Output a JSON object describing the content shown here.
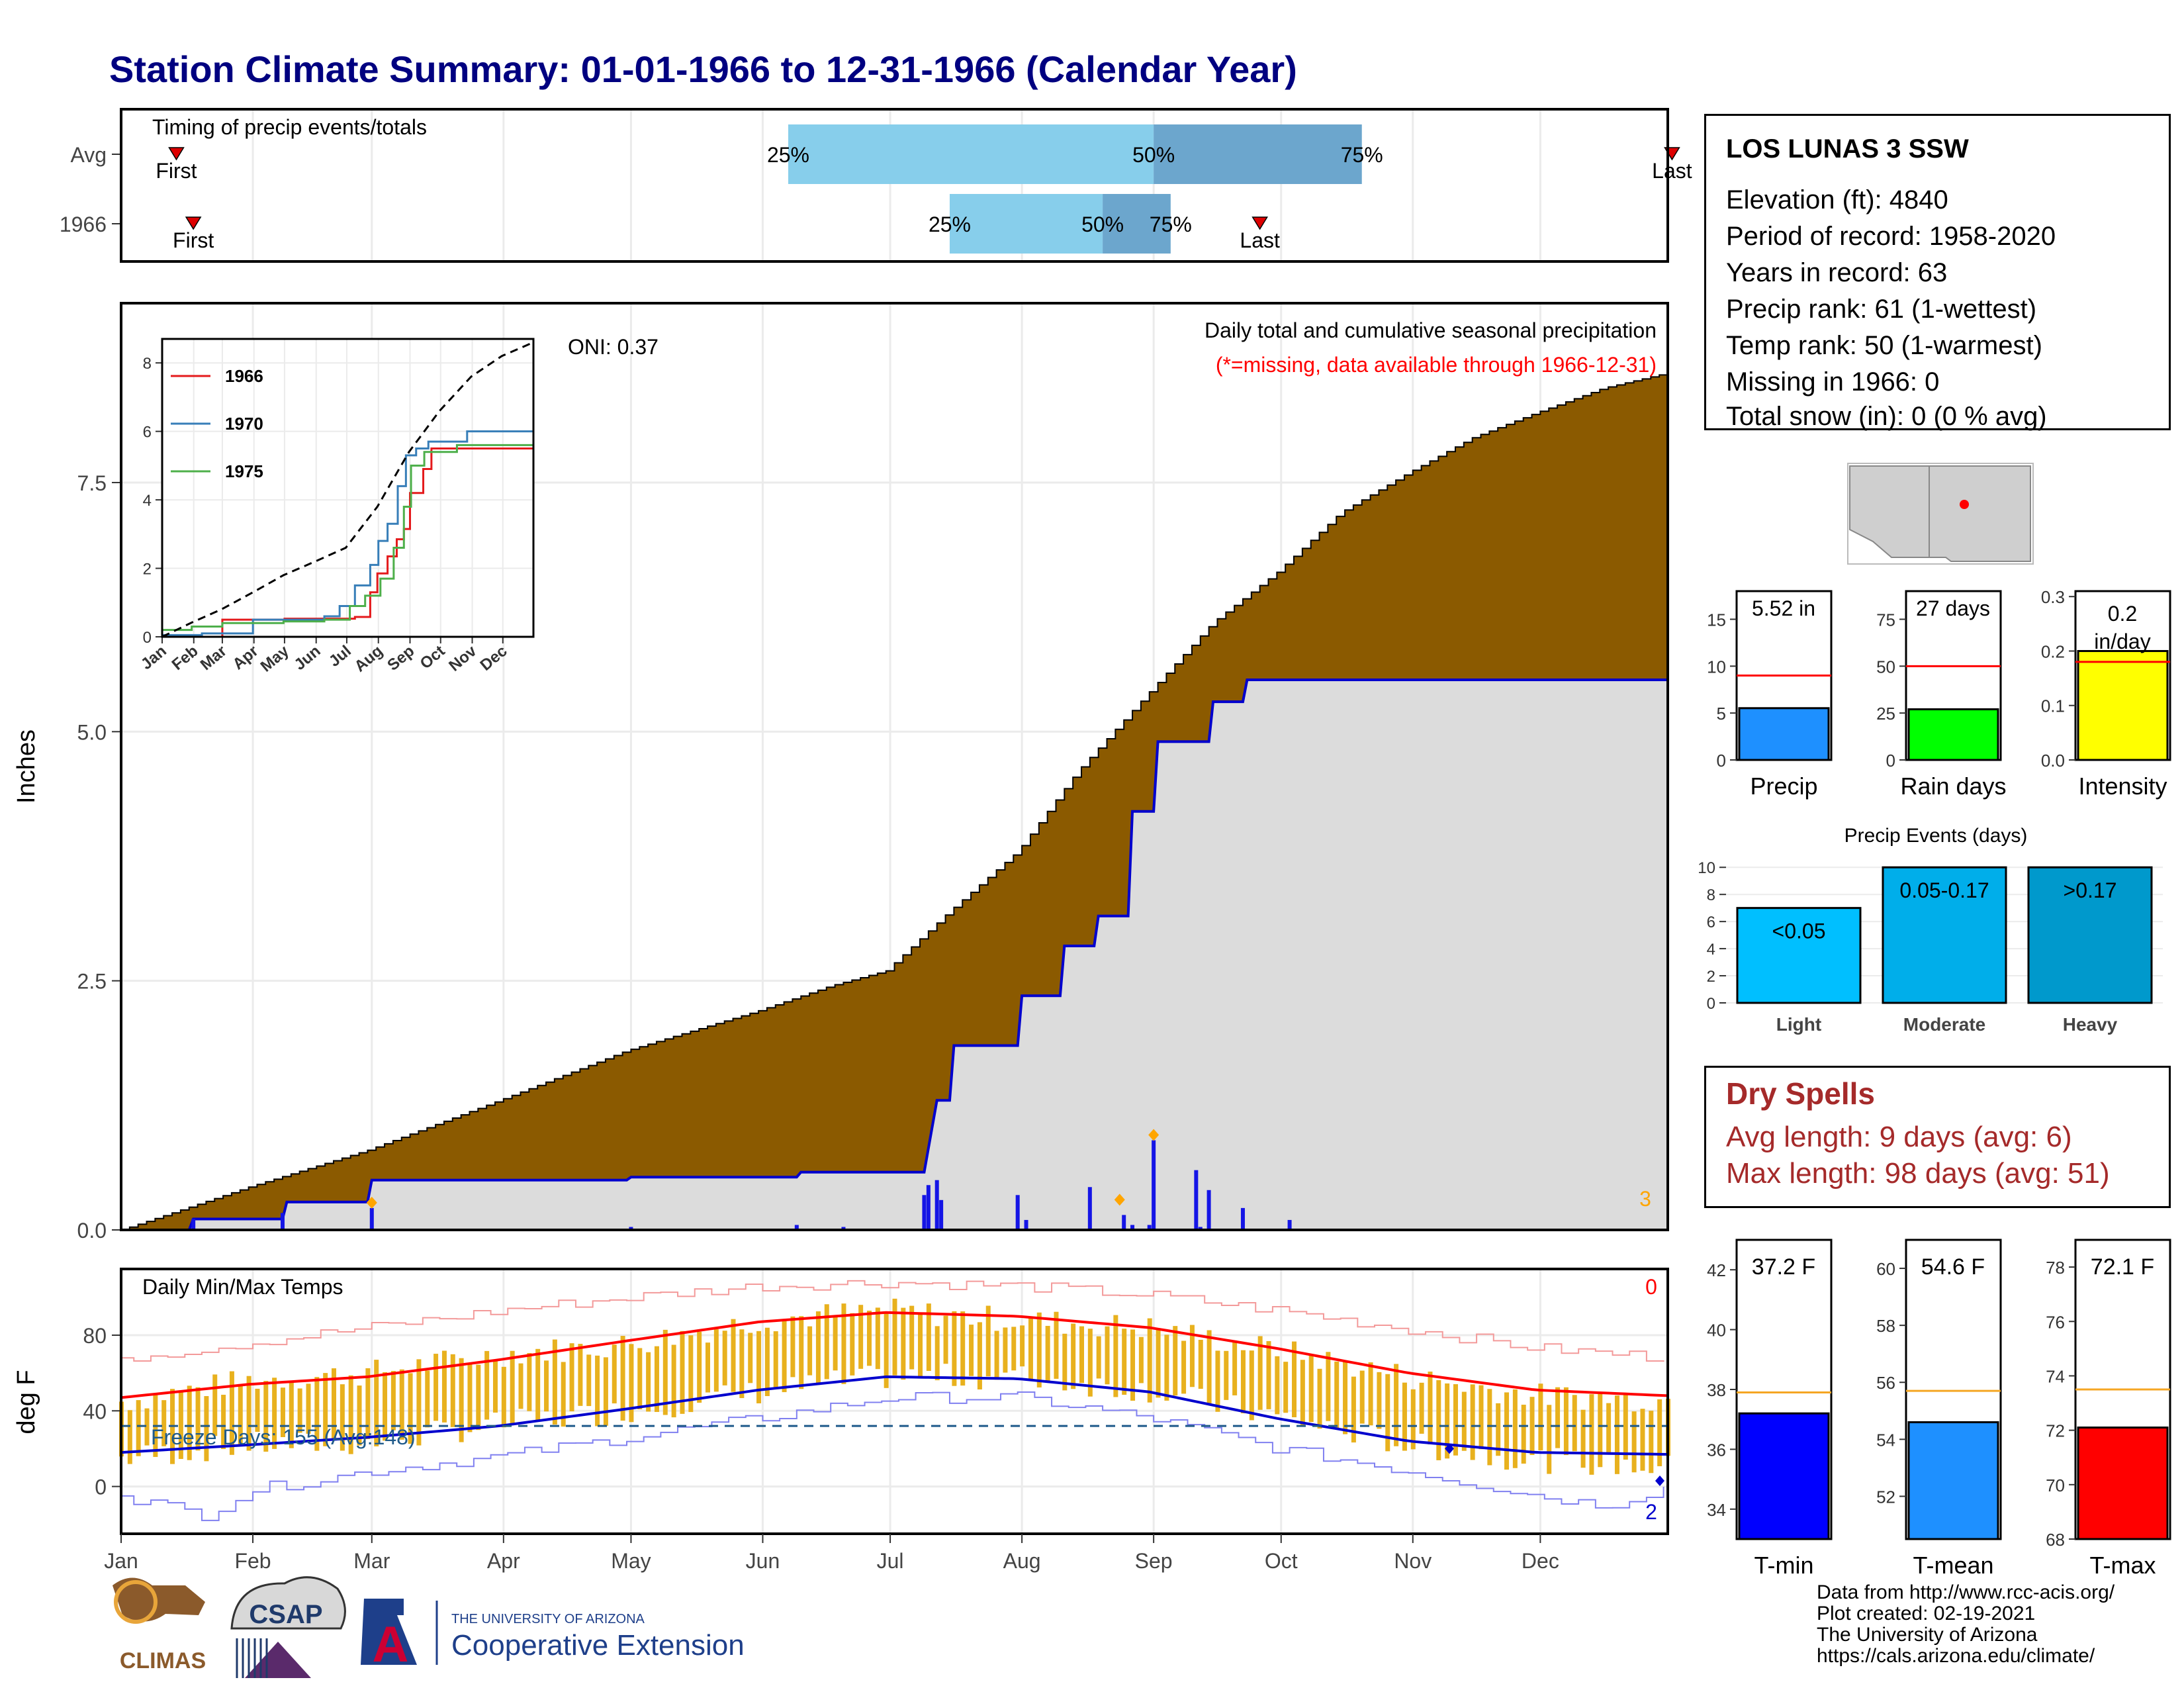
{
  "title": "Station Climate Summary: 01-01-1966 to 12-31-1966 (Calendar Year)",
  "station": {
    "name": "LOS LUNAS 3 SSW",
    "lines": [
      "Elevation (ft): 4840",
      "Period of record: 1958-2020",
      "Years in record: 63",
      "Precip rank: 61 (1-wettest)",
      "Temp rank: 50 (1-warmest)",
      "Missing in 1966: 0",
      "Total snow (in): 0 (0 % avg)"
    ]
  },
  "dry_spells": {
    "title": "Dry Spells",
    "avg": "Avg length: 9 days (avg: 6)",
    "max": "Max length: 98 days (avg: 51)"
  },
  "footer": {
    "lines": [
      "Data from http://www.rcc-acis.org/",
      "Plot created: 02-19-2021",
      "The University of Arizona",
      "https://cals.arizona.edu/climate/"
    ],
    "logos": [
      "CLIMAS",
      "CSAP",
      "A",
      "THE UNIVERSITY OF ARIZONA",
      "Cooperative Extension"
    ]
  },
  "months": [
    "Jan",
    "Feb",
    "Mar",
    "Apr",
    "May",
    "Jun",
    "Jul",
    "Aug",
    "Sep",
    "Oct",
    "Nov",
    "Dec"
  ],
  "colors": {
    "avg_fill": "#8B5A00",
    "year_fill": "#DCDCDC",
    "year_line": "#0000CD",
    "bar": "#1515E6",
    "marker": "#FFA500",
    "temp_bar": "#E8B11E",
    "tmax_avg": "#FF0000",
    "tmin_avg": "#0000CD",
    "record_max": "#F39A9A",
    "record_min": "#8080F0",
    "panel_border": "#000000",
    "grid": "#EBEBEB"
  },
  "chart_data": [
    {
      "id": "timing",
      "type": "bar",
      "title": "Timing of precip events/totals",
      "rows": [
        {
          "label": "Avg",
          "first_doy": 14,
          "last_doy": 366,
          "p25_doy": 158,
          "p50_doy": 244,
          "p75_doy": 293,
          "p25_label": "25%",
          "p50_label": "50%",
          "p75_label": "75%",
          "first_label": "First",
          "last_label": "Last"
        },
        {
          "label": "1966",
          "first_doy": 18,
          "last_doy": 269,
          "p25_doy": 196,
          "p50_doy": 232,
          "p75_doy": 248,
          "p25_label": "25%",
          "p50_label": "50%",
          "p75_label": "75%",
          "first_label": "First",
          "last_label": "Last"
        }
      ]
    },
    {
      "id": "precip",
      "type": "area",
      "title": "Daily total and cumulative seasonal precipitation",
      "subtitle": "(*=missing, data available through 1966-12-31)",
      "annotation": "ONI: 0.37",
      "ylabel": "Inches",
      "ylim": [
        0,
        9.3
      ],
      "yticks": [
        0.0,
        2.5,
        5.0,
        7.5
      ],
      "corner_count": "3",
      "avg_cumulative": {
        "x": [
          1,
          15,
          31,
          59,
          90,
          120,
          151,
          168,
          181,
          196,
          212,
          226,
          243,
          258,
          273,
          288,
          304,
          319,
          334,
          350,
          365
        ],
        "y": [
          0.0,
          0.2,
          0.43,
          0.8,
          1.3,
          1.8,
          2.2,
          2.45,
          2.6,
          3.2,
          3.8,
          4.6,
          5.4,
          6.1,
          6.6,
          7.2,
          7.6,
          7.95,
          8.2,
          8.45,
          8.6
        ]
      },
      "year_cumulative": {
        "x": [
          1,
          17,
          18,
          39,
          40,
          59,
          60,
          120,
          121,
          160,
          161,
          190,
          191,
          193,
          196,
          197,
          212,
          213,
          222,
          223,
          230,
          231,
          238,
          239,
          244,
          245,
          257,
          258,
          265,
          266,
          365
        ],
        "y": [
          0.0,
          0.0,
          0.11,
          0.11,
          0.28,
          0.28,
          0.5,
          0.5,
          0.53,
          0.53,
          0.58,
          0.58,
          0.82,
          1.3,
          1.3,
          1.85,
          1.85,
          2.35,
          2.35,
          2.85,
          2.85,
          3.15,
          3.15,
          4.2,
          4.2,
          4.9,
          4.9,
          5.3,
          5.3,
          5.52,
          5.52
        ]
      },
      "daily_bars": {
        "x": [
          18,
          39,
          60,
          121,
          160,
          171,
          190,
          191,
          193,
          194,
          212,
          214,
          229,
          237,
          239,
          243,
          244,
          254,
          255,
          257,
          265,
          276
        ],
        "y": [
          0.11,
          0.17,
          0.22,
          0.03,
          0.05,
          0.03,
          0.35,
          0.45,
          0.5,
          0.3,
          0.35,
          0.1,
          0.43,
          0.15,
          0.05,
          0.05,
          0.9,
          0.6,
          0.03,
          0.4,
          0.22,
          0.1
        ]
      },
      "flagged_days": {
        "x": [
          60,
          236,
          244
        ],
        "y": [
          0.22,
          0.25,
          0.9
        ]
      },
      "inset": {
        "type": "line",
        "yticks": [
          0,
          2,
          4,
          6,
          8
        ],
        "ylim": [
          0,
          8.7
        ],
        "series": [
          {
            "name": "1966",
            "color": "#E41A1C",
            "x": [
              1,
              60,
              121,
              190,
              205,
              212,
              222,
              231,
              238,
              244,
              257,
              265,
              365
            ],
            "y": [
              0.0,
              0.5,
              0.53,
              0.58,
              1.3,
              1.85,
              2.35,
              2.85,
              3.15,
              4.2,
              4.9,
              5.5,
              5.52
            ]
          },
          {
            "name": "1970",
            "color": "#377EB8",
            "x": [
              1,
              40,
              90,
              160,
              175,
              190,
              205,
              213,
              222,
              232,
              240,
              250,
              262,
              300,
              365
            ],
            "y": [
              0.05,
              0.1,
              0.5,
              0.6,
              0.9,
              1.5,
              2.1,
              2.8,
              3.3,
              4.4,
              5.3,
              5.5,
              5.7,
              6.0,
              6.0
            ]
          },
          {
            "name": "1975",
            "color": "#4DAF4A",
            "x": [
              1,
              30,
              60,
              120,
              160,
              185,
              200,
              215,
              228,
              238,
              245,
              258,
              290,
              365
            ],
            "y": [
              0.2,
              0.3,
              0.4,
              0.45,
              0.5,
              0.9,
              1.2,
              1.7,
              2.6,
              3.8,
              5.0,
              5.4,
              5.6,
              5.6
            ]
          },
          {
            "name": "avg",
            "color": "#000000",
            "dashed": true,
            "x": [
              1,
              31,
              59,
              90,
              120,
              151,
              181,
              212,
              243,
              273,
              304,
              334,
              365
            ],
            "y": [
              0.0,
              0.43,
              0.8,
              1.3,
              1.8,
              2.2,
              2.6,
              3.8,
              5.4,
              6.6,
              7.6,
              8.2,
              8.6
            ]
          }
        ]
      }
    },
    {
      "id": "temps",
      "type": "bar",
      "title": "Daily Min/Max Temps",
      "ylabel": "deg F",
      "ylim": [
        -25,
        115
      ],
      "yticks": [
        0,
        40,
        80
      ],
      "freeze_line": 32,
      "freeze_label": "Freeze Days: 155 (Avg:148)",
      "hot_count": "0",
      "cold_count": "2",
      "avg_max": {
        "x": [
          1,
          31,
          59,
          90,
          120,
          151,
          181,
          212,
          243,
          273,
          304,
          334,
          365
        ],
        "y": [
          47,
          54,
          58,
          67,
          77,
          87,
          92,
          90,
          84,
          73,
          60,
          51,
          48
        ]
      },
      "avg_min": {
        "x": [
          1,
          31,
          59,
          90,
          120,
          151,
          181,
          212,
          243,
          273,
          304,
          334,
          365
        ],
        "y": [
          18,
          22,
          26,
          32,
          41,
          51,
          58,
          57,
          50,
          36,
          24,
          18,
          17
        ]
      },
      "record_max": {
        "x": [
          1,
          31,
          59,
          90,
          120,
          151,
          181,
          212,
          243,
          273,
          304,
          334,
          365
        ],
        "y": [
          68,
          76,
          84,
          93,
          100,
          106,
          108,
          106,
          101,
          93,
          83,
          73,
          68
        ]
      },
      "record_min": {
        "x": [
          1,
          20,
          31,
          59,
          90,
          120,
          151,
          181,
          212,
          243,
          273,
          304,
          334,
          350,
          365
        ],
        "y": [
          -5,
          -15,
          -2,
          8,
          16,
          26,
          36,
          47,
          47,
          36,
          20,
          8,
          -5,
          -10,
          0
        ]
      },
      "daily_max_anchor": {
        "x": [
          1,
          31,
          59,
          90,
          120,
          151,
          181,
          212,
          243,
          273,
          304,
          334,
          365
        ],
        "y": [
          45,
          56,
          60,
          70,
          75,
          88,
          93,
          88,
          84,
          72,
          58,
          48,
          46
        ]
      },
      "daily_min_anchor": {
        "x": [
          1,
          31,
          59,
          90,
          120,
          151,
          181,
          212,
          243,
          273,
          304,
          334,
          365
        ],
        "y": [
          15,
          22,
          23,
          33,
          40,
          50,
          58,
          58,
          51,
          37,
          22,
          14,
          10
        ]
      }
    },
    {
      "id": "summary_precip",
      "type": "bar",
      "panels": [
        {
          "label": "Precip",
          "value": 5.52,
          "value_label": "5.52 in",
          "avg": 9.0,
          "ylim": [
            0,
            18
          ],
          "yticks": [
            0,
            5,
            10,
            15
          ],
          "color": "#1E90FF"
        },
        {
          "label": "Rain days",
          "value": 27,
          "value_label": "27 days",
          "avg": 50,
          "ylim": [
            0,
            90
          ],
          "yticks": [
            0,
            25,
            50,
            75
          ],
          "color": "#00FF00"
        },
        {
          "label": "Intensity",
          "value": 0.2,
          "value_label": "0.2 in/day",
          "avg": 0.18,
          "ylim": [
            0,
            0.31
          ],
          "yticks": [
            0.0,
            0.1,
            0.2,
            0.3
          ],
          "ytick_labels": [
            "0.0",
            "0.1",
            "0.2",
            "0.3"
          ],
          "color": "#FFFF00"
        }
      ]
    },
    {
      "id": "precip_events",
      "type": "bar",
      "title": "Precip Events (days)",
      "categories": [
        "Light",
        "Moderate",
        "Heavy"
      ],
      "values": [
        7,
        10,
        10
      ],
      "value_labels": [
        "<0.05",
        "0.05-0.17",
        ">0.17"
      ],
      "colors": [
        "#00BFFF",
        "#00AEEA",
        "#0099CC"
      ],
      "ylim": [
        0,
        10.5
      ],
      "yticks": [
        0,
        2,
        4,
        6,
        8,
        10
      ]
    },
    {
      "id": "summary_temps",
      "type": "bar",
      "panels": [
        {
          "label": "T-min",
          "value": 37.2,
          "value_label": "37.2 F",
          "avg": 37.9,
          "ylim": [
            33,
            43
          ],
          "yticks": [
            34,
            36,
            38,
            40,
            42
          ],
          "color": "#0000FF"
        },
        {
          "label": "T-mean",
          "value": 54.6,
          "value_label": "54.6 F",
          "avg": 55.7,
          "ylim": [
            50.5,
            61
          ],
          "yticks": [
            52,
            54,
            56,
            58,
            60
          ],
          "color": "#1E90FF"
        },
        {
          "label": "T-max",
          "value": 72.1,
          "value_label": "72.1 F",
          "avg": 73.5,
          "ylim": [
            68,
            79
          ],
          "yticks": [
            68,
            70,
            72,
            74,
            76,
            78
          ],
          "color": "#FF0000"
        }
      ]
    }
  ]
}
